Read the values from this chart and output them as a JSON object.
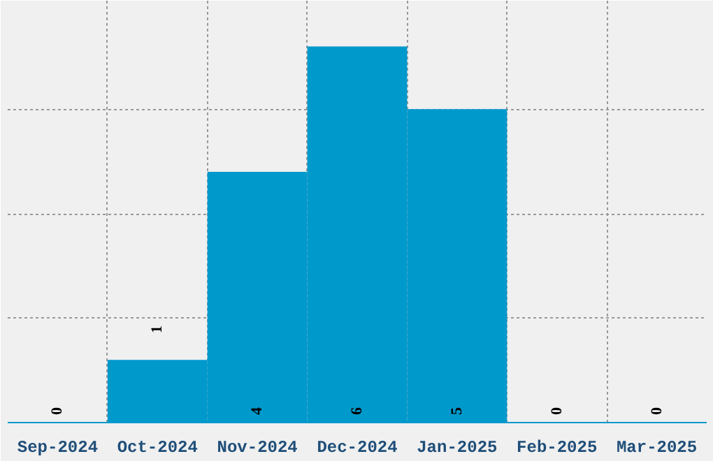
{
  "chart_data": {
    "type": "bar",
    "categories": [
      "Sep-2024",
      "Oct-2024",
      "Nov-2024",
      "Dec-2024",
      "Jan-2025",
      "Feb-2025",
      "Mar-2025"
    ],
    "values": [
      0,
      1,
      4,
      6,
      5,
      0,
      0
    ],
    "color": "#0099cc",
    "ylim": [
      0,
      6.73
    ],
    "yticks": [
      {
        "value": 1.67,
        "label": null
      },
      {
        "value": 3.33,
        "label": null
      },
      {
        "value": 5,
        "label": null
      }
    ],
    "tick_labels": "x",
    "grid": true,
    "data_labels": true
  }
}
